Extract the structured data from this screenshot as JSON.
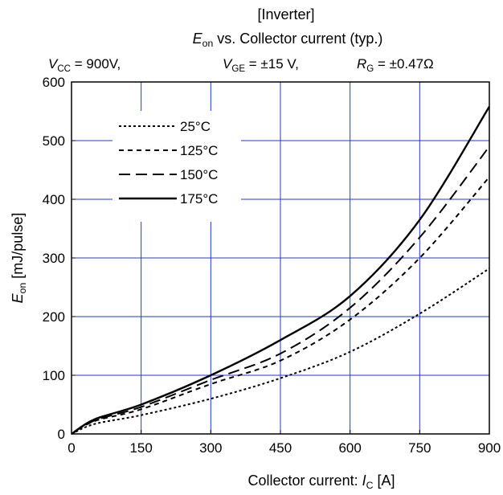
{
  "chart_data": {
    "type": "line",
    "title_line1": "[Inverter]",
    "title_line2": {
      "var": "E",
      "sub": "on",
      "text": " vs. Collector current  (typ.)"
    },
    "conditions": [
      {
        "var": "V",
        "sub": "CC",
        "text": "=  900V,"
      },
      {
        "var": "V",
        "sub": "GE",
        "text": "=  ±15 V,"
      },
      {
        "var": "R",
        "sub": "G",
        "text": "=  ±0.47Ω"
      }
    ],
    "xlabel": {
      "prefix": "Collector current: ",
      "var": "I",
      "sub": "C",
      "suffix": " [A]"
    },
    "ylabel": {
      "var": "E",
      "sub": "on",
      "suffix": " [mJ/pulse]"
    },
    "xlim": [
      0,
      900
    ],
    "ylim": [
      0,
      600
    ],
    "xticks": [
      0,
      150,
      300,
      450,
      600,
      750,
      900
    ],
    "yticks": [
      0,
      100,
      200,
      300,
      400,
      500,
      600
    ],
    "grid": true,
    "legend_position": "top-left",
    "series": [
      {
        "name": "25°C",
        "dash": "short",
        "x": [
          0,
          50,
          150,
          300,
          450,
          600,
          750,
          900
        ],
        "y": [
          0,
          17,
          32,
          60,
          95,
          140,
          205,
          282
        ]
      },
      {
        "name": "125°C",
        "dash": "medium",
        "x": [
          0,
          50,
          150,
          300,
          450,
          600,
          750,
          900
        ],
        "y": [
          0,
          22,
          42,
          85,
          125,
          195,
          300,
          438
        ]
      },
      {
        "name": "150°C",
        "dash": "long",
        "x": [
          0,
          50,
          150,
          300,
          450,
          600,
          750,
          900
        ],
        "y": [
          0,
          23,
          46,
          92,
          137,
          215,
          335,
          490
        ]
      },
      {
        "name": "175°C",
        "dash": "solid",
        "x": [
          0,
          50,
          150,
          300,
          450,
          600,
          750,
          900
        ],
        "y": [
          0,
          25,
          50,
          100,
          160,
          235,
          365,
          558
        ]
      }
    ]
  }
}
